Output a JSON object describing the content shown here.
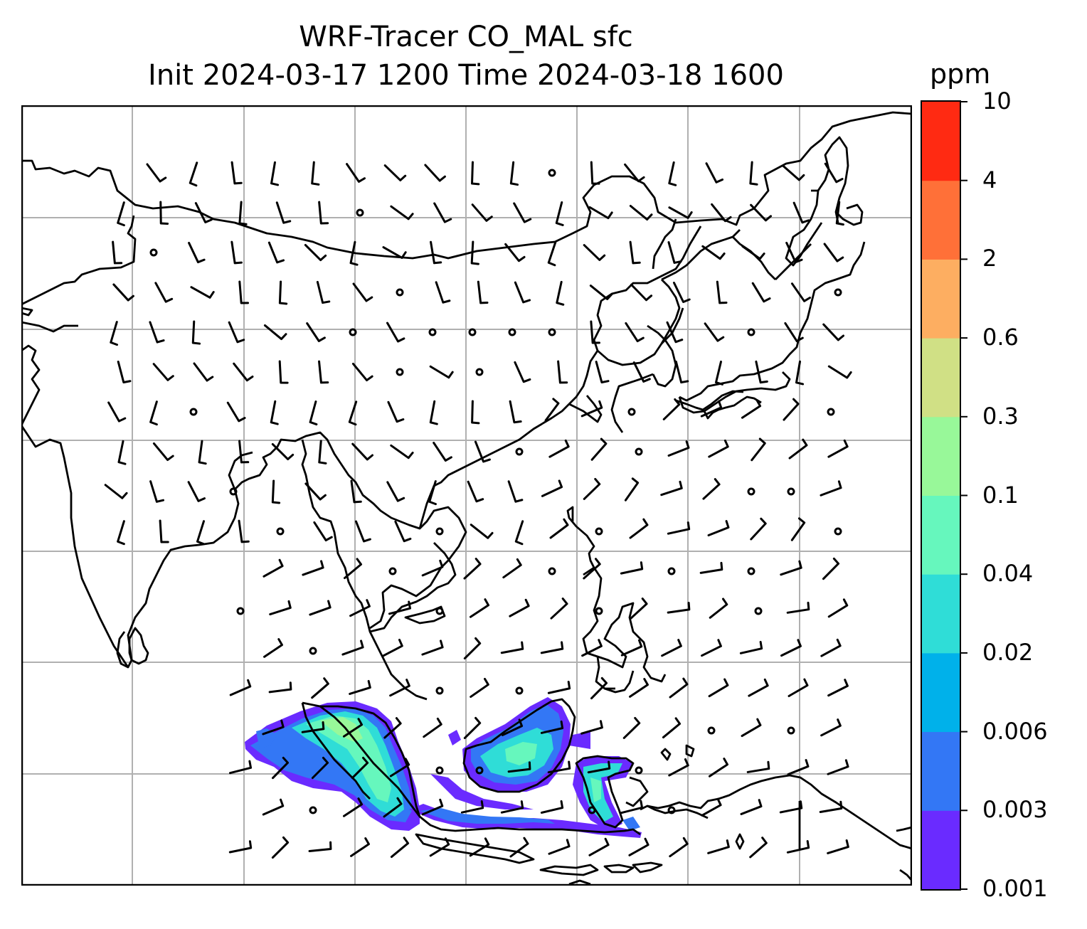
{
  "title": {
    "line1": "WRF-Tracer CO_MAL sfc",
    "line2": "Init 2024-03-17 1200 Time 2024-03-18 1600"
  },
  "colorbar": {
    "unit": "ppm",
    "tick_labels": [
      "0.001",
      "0.003",
      "0.006",
      "0.02",
      "0.04",
      "0.1",
      "0.3",
      "0.6",
      "2",
      "4",
      "10"
    ],
    "colors": [
      "#6a2bff",
      "#3377f5",
      "#00b1ea",
      "#2fddd7",
      "#66f7bd",
      "#98f899",
      "#d0e085",
      "#fdae61",
      "#ff7038",
      "#ff2a12"
    ]
  },
  "map": {
    "gridlines": true,
    "coastline_color": "#000000",
    "grid_color": "#b0b0b0",
    "wind_barbs": true,
    "tracer_field_colors": [
      "#6a2bff",
      "#3377f5",
      "#2fddd7",
      "#66f7bd",
      "#98f899"
    ]
  }
}
